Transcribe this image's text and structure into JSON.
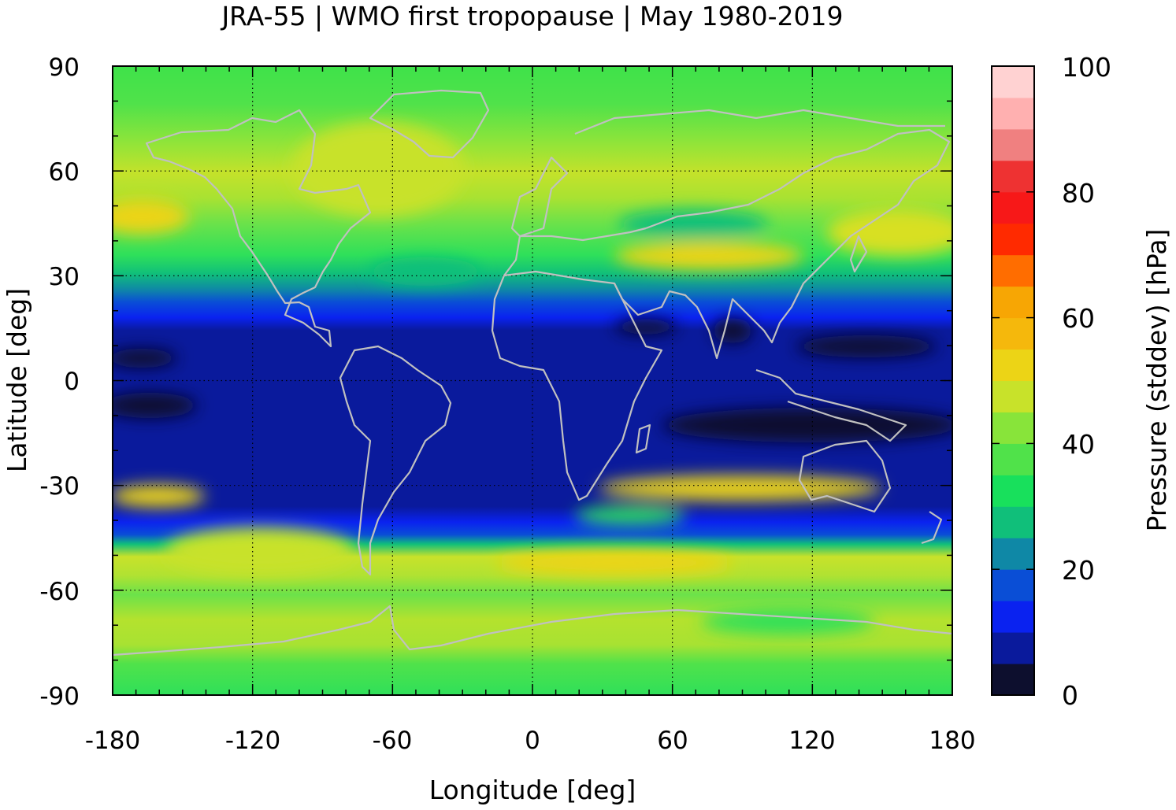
{
  "title": "JRA-55 | WMO first tropopause | May 1980-2019",
  "x_axis": {
    "label": "Longitude [deg]",
    "ticks": [
      "-180",
      "-120",
      "-60",
      "0",
      "60",
      "120",
      "180"
    ]
  },
  "y_axis": {
    "label": "Latitude [deg]",
    "ticks": [
      "90",
      "60",
      "30",
      "0",
      "-30",
      "-60",
      "-90"
    ]
  },
  "colorbar": {
    "label": "Pressure (stddev) [hPa]",
    "ticks": [
      "0",
      "20",
      "40",
      "60",
      "80",
      "100"
    ],
    "range": [
      0,
      100
    ],
    "levels": [
      0,
      5,
      10,
      15,
      20,
      25,
      30,
      35,
      40,
      45,
      50,
      55,
      60,
      65,
      70,
      75,
      80,
      85,
      90,
      95,
      100
    ],
    "colors": [
      "#0d0f2e",
      "#0a1a9c",
      "#0a22f0",
      "#0a4ed6",
      "#0f88a6",
      "#10bf7a",
      "#18e05c",
      "#50e24a",
      "#88e43a",
      "#c8e22a",
      "#ecd416",
      "#f5b80c",
      "#f7a604",
      "#ff6d00",
      "#ff2a00",
      "#f71818",
      "#ee3232",
      "#f08080",
      "#ffb0b0",
      "#ffd2d2"
    ]
  },
  "map": {
    "projection": "equirectangular",
    "lon_range": [
      -180,
      180
    ],
    "lat_range": [
      -90,
      90
    ],
    "coastline_color": "#c0c0c0",
    "grid": "dotted"
  }
}
